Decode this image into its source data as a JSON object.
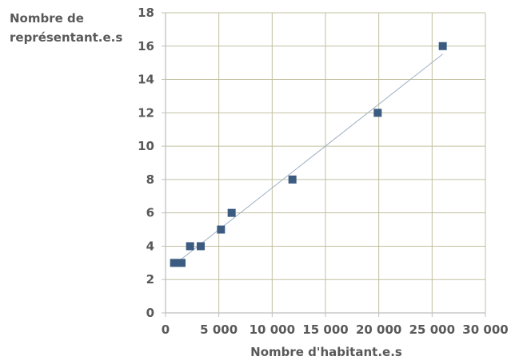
{
  "chart_data": {
    "type": "scatter",
    "title": "",
    "ylabel_lines": [
      "Nombre de",
      "représentant.e.s"
    ],
    "xlabel": "Nombre d'habitant.e.s",
    "xlim": [
      0,
      30000
    ],
    "ylim": [
      0,
      18
    ],
    "x_ticks": [
      0,
      5000,
      10000,
      15000,
      20000,
      25000,
      30000
    ],
    "x_tick_labels": [
      "0",
      "5 000",
      "10 000",
      "15 000",
      "20 000",
      "25 000",
      "30 000"
    ],
    "y_ticks": [
      0,
      2,
      4,
      6,
      8,
      10,
      12,
      14,
      16,
      18
    ],
    "y_tick_labels": [
      "0",
      "2",
      "4",
      "6",
      "8",
      "10",
      "12",
      "14",
      "16",
      "18"
    ],
    "grid": true,
    "trendline": true,
    "marker_color": "#3b5c80",
    "series": [
      {
        "points": [
          {
            "x": 800,
            "y": 3
          },
          {
            "x": 1500,
            "y": 3
          },
          {
            "x": 2300,
            "y": 4
          },
          {
            "x": 3300,
            "y": 4
          },
          {
            "x": 5200,
            "y": 5
          },
          {
            "x": 6200,
            "y": 6
          },
          {
            "x": 11900,
            "y": 8
          },
          {
            "x": 19900,
            "y": 12
          },
          {
            "x": 26000,
            "y": 16
          }
        ]
      }
    ]
  }
}
